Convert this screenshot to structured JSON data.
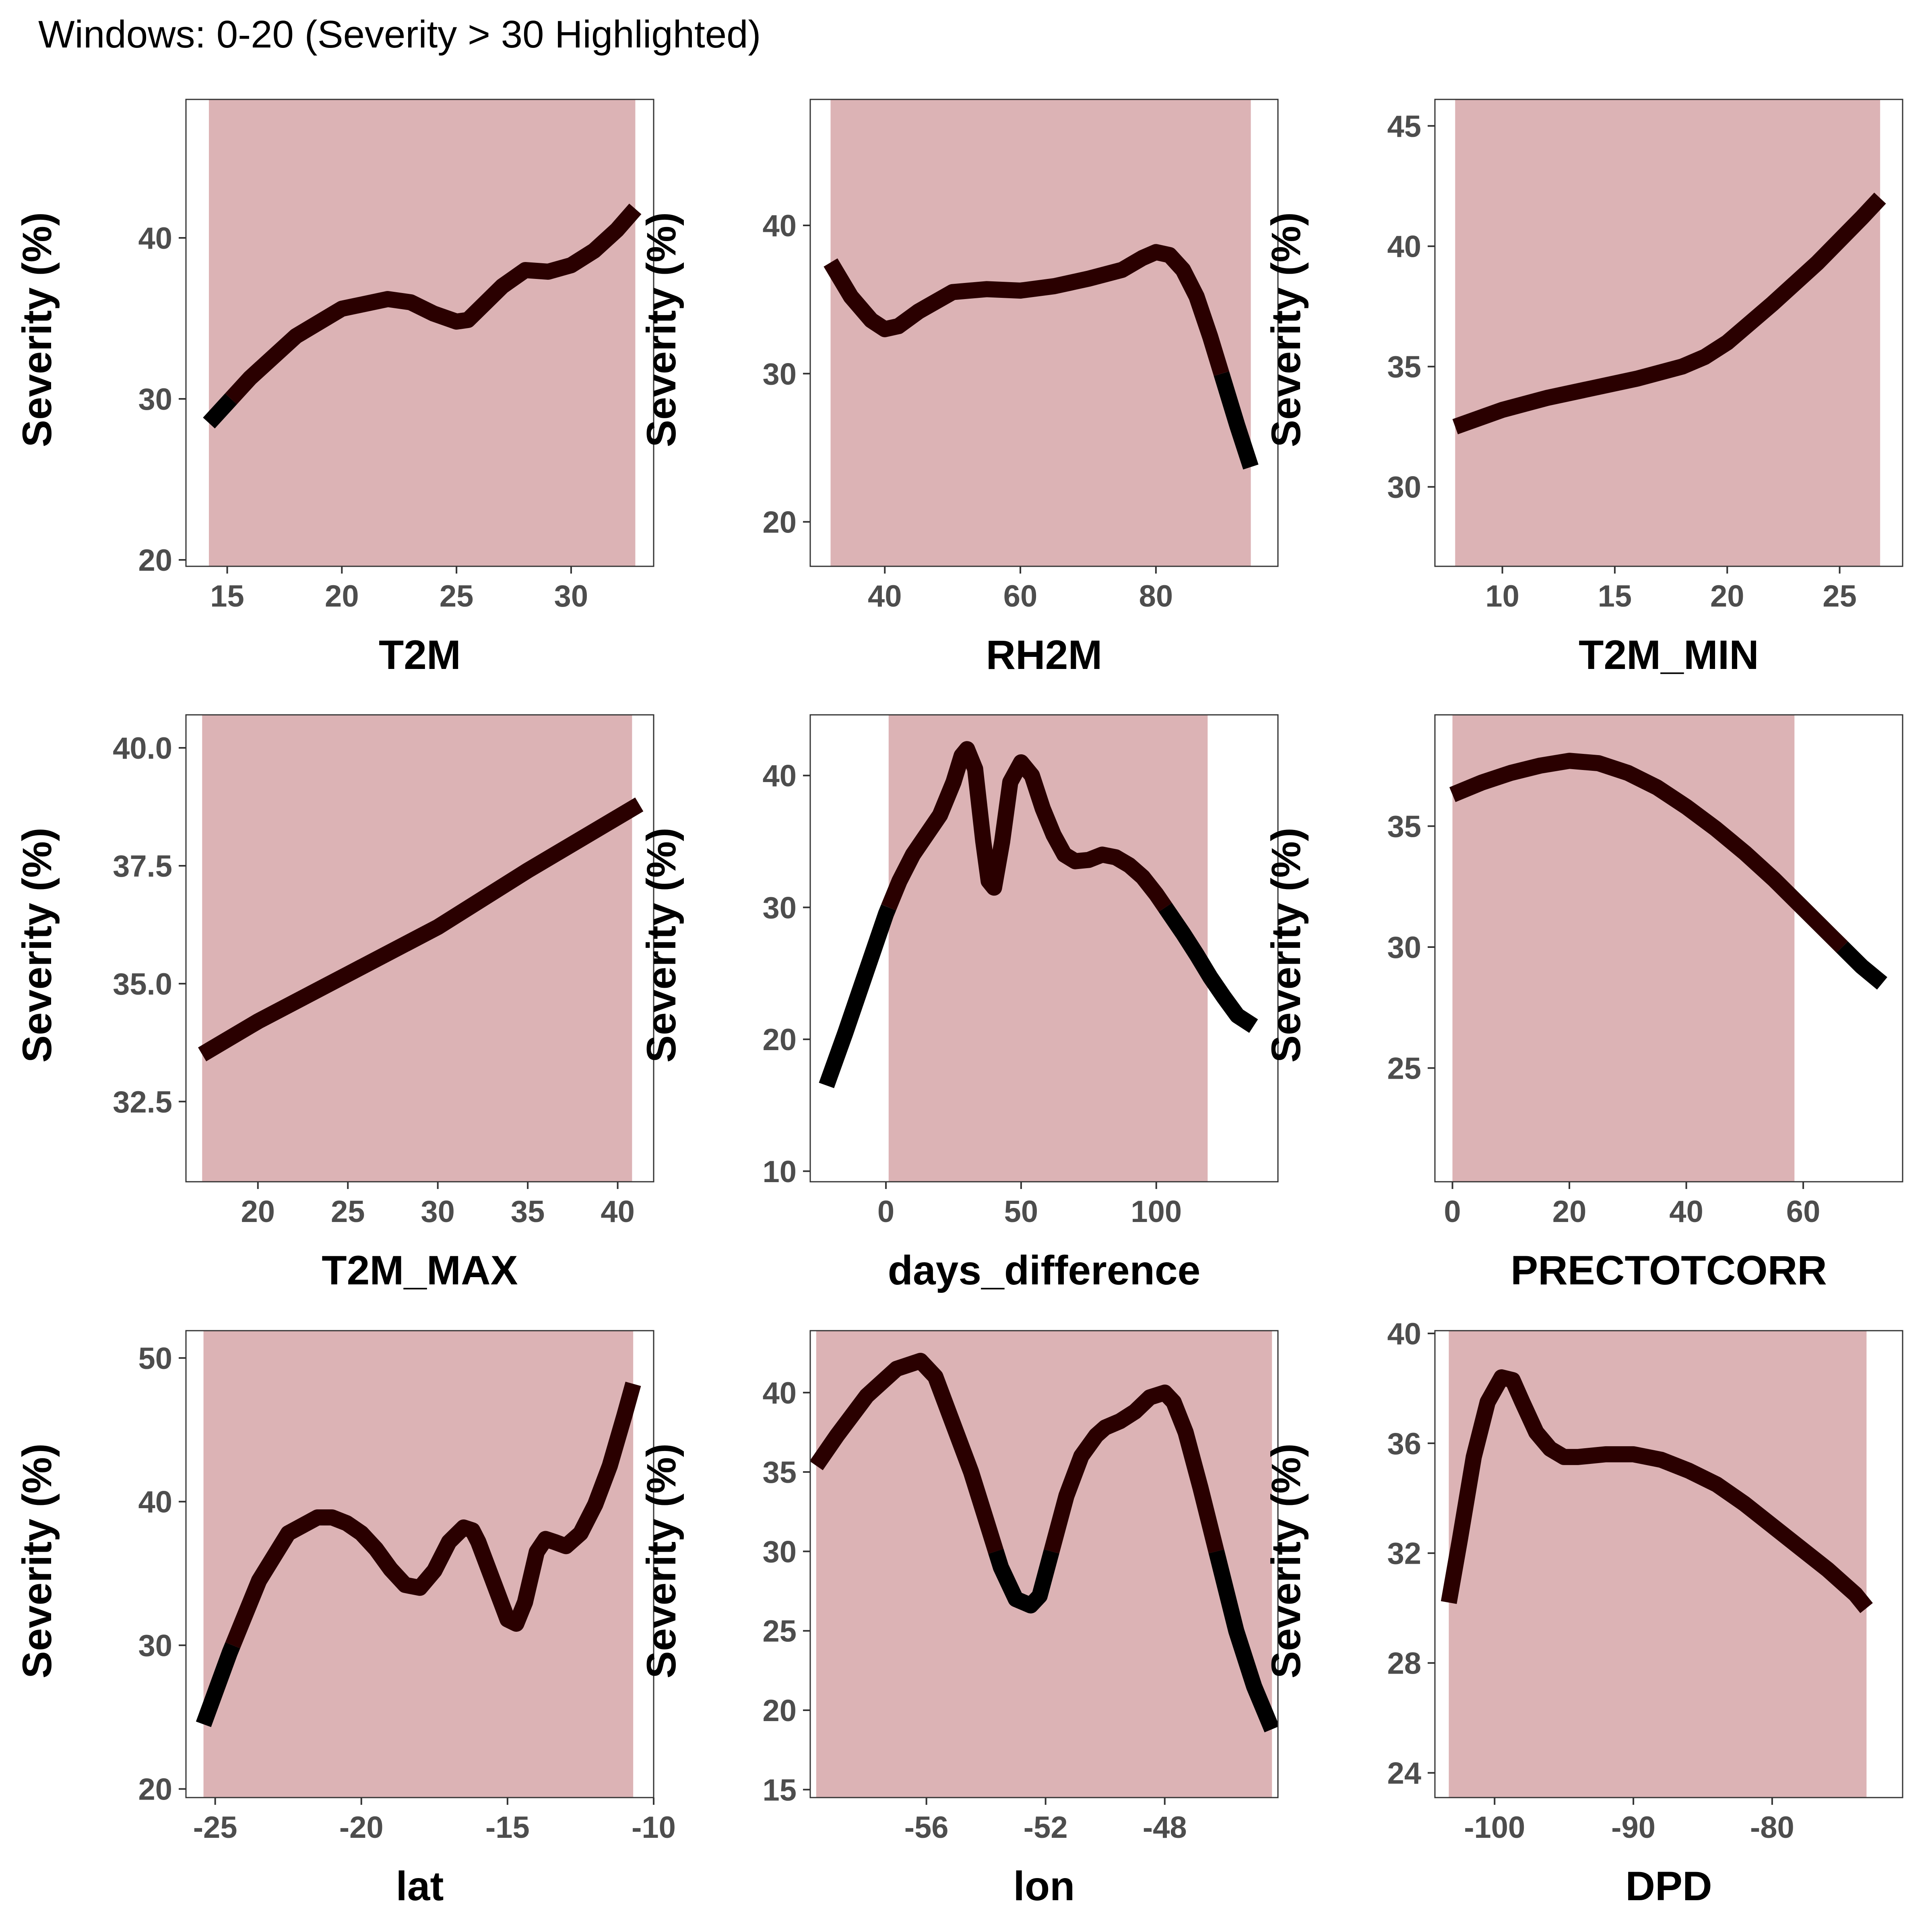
{
  "title": "Windows: 0-20 (Severity > 30 Highlighted)",
  "colors": {
    "highlight": "#dcb3b5",
    "line_above": "#2a0000",
    "line_below": "#000000",
    "axis": "#333333",
    "tick_text": "#4d4d4d"
  },
  "chart_data": [
    {
      "type": "line",
      "xlabel": "T2M",
      "ylabel": "Severity (%)",
      "xlim": [
        13.2,
        33.6
      ],
      "ylim": [
        19.6,
        48.6
      ],
      "xticks": [
        {
          "v": 15,
          "label": "15"
        },
        {
          "v": 20,
          "label": "20"
        },
        {
          "v": 25,
          "label": "25"
        },
        {
          "v": 30,
          "label": "30"
        }
      ],
      "yticks": [
        {
          "v": 20,
          "label": "20"
        },
        {
          "v": 30,
          "label": "30"
        },
        {
          "v": 40,
          "label": "40"
        }
      ],
      "highlight": [
        [
          14.2,
          32.8
        ]
      ],
      "x": [
        14.2,
        16,
        18,
        20,
        22,
        23,
        24,
        25,
        25.5,
        26,
        27,
        28,
        29,
        30,
        31,
        32,
        32.8
      ],
      "y": [
        28.5,
        31.3,
        33.9,
        35.6,
        36.2,
        36.0,
        35.3,
        34.8,
        34.9,
        35.6,
        37.0,
        38.0,
        37.9,
        38.3,
        39.2,
        40.5,
        41.8
      ]
    },
    {
      "type": "line",
      "xlabel": "RH2M",
      "ylabel": "Severity (%)",
      "xlim": [
        29,
        98
      ],
      "ylim": [
        17,
        48.5
      ],
      "xticks": [
        {
          "v": 40,
          "label": "40"
        },
        {
          "v": 60,
          "label": "60"
        },
        {
          "v": 80,
          "label": "80"
        }
      ],
      "yticks": [
        {
          "v": 20,
          "label": "20"
        },
        {
          "v": 30,
          "label": "30"
        },
        {
          "v": 40,
          "label": "40"
        }
      ],
      "highlight": [
        [
          32,
          94
        ]
      ],
      "x": [
        32,
        35,
        38,
        40,
        42,
        45,
        50,
        55,
        60,
        65,
        70,
        75,
        78,
        80,
        82,
        84,
        86,
        88,
        90,
        92,
        94
      ],
      "y": [
        37.5,
        35.2,
        33.6,
        33.0,
        33.2,
        34.2,
        35.5,
        35.7,
        35.6,
        35.9,
        36.4,
        37.0,
        37.8,
        38.2,
        38.0,
        37.0,
        35.2,
        32.5,
        29.5,
        26.5,
        23.7
      ]
    },
    {
      "type": "line",
      "xlabel": "T2M_MIN",
      "ylabel": "Severity (%)",
      "xlim": [
        7,
        27.8
      ],
      "ylim": [
        26.7,
        46.1
      ],
      "xticks": [
        {
          "v": 10,
          "label": "10"
        },
        {
          "v": 15,
          "label": "15"
        },
        {
          "v": 20,
          "label": "20"
        },
        {
          "v": 25,
          "label": "25"
        }
      ],
      "yticks": [
        {
          "v": 30,
          "label": "30"
        },
        {
          "v": 35,
          "label": "35"
        },
        {
          "v": 40,
          "label": "40"
        },
        {
          "v": 45,
          "label": "45"
        }
      ],
      "highlight": [
        [
          7.9,
          26.8
        ]
      ],
      "x": [
        7.9,
        10,
        12,
        14,
        16,
        18,
        19,
        20,
        22,
        24,
        26,
        26.8
      ],
      "y": [
        32.5,
        33.2,
        33.7,
        34.1,
        34.5,
        35.0,
        35.4,
        36.0,
        37.6,
        39.3,
        41.2,
        42.0
      ]
    },
    {
      "type": "line",
      "xlabel": "T2M_MAX",
      "ylabel": "Severity (%)",
      "xlim": [
        16,
        42
      ],
      "ylim": [
        30.8,
        40.7
      ],
      "xticks": [
        {
          "v": 20,
          "label": "20"
        },
        {
          "v": 25,
          "label": "25"
        },
        {
          "v": 30,
          "label": "30"
        },
        {
          "v": 35,
          "label": "35"
        },
        {
          "v": 40,
          "label": "40"
        }
      ],
      "yticks": [
        {
          "v": 32.5,
          "label": "32.5"
        },
        {
          "v": 35,
          "label": "35.0"
        },
        {
          "v": 37.5,
          "label": "37.5"
        },
        {
          "v": 40,
          "label": "40.0"
        }
      ],
      "highlight": [
        [
          16.9,
          40.8
        ]
      ],
      "x": [
        16.9,
        20,
        25,
        30,
        35,
        41.2
      ],
      "y": [
        33.5,
        34.2,
        35.2,
        36.2,
        37.4,
        38.8
      ]
    },
    {
      "type": "line",
      "xlabel": "days_difference",
      "ylabel": "Severity (%)",
      "xlim": [
        -28,
        145
      ],
      "ylim": [
        9.2,
        44.6
      ],
      "xticks": [
        {
          "v": 0,
          "label": "0"
        },
        {
          "v": 50,
          "label": "50"
        },
        {
          "v": 100,
          "label": "100"
        }
      ],
      "yticks": [
        {
          "v": 10,
          "label": "10"
        },
        {
          "v": 20,
          "label": "20"
        },
        {
          "v": 30,
          "label": "30"
        },
        {
          "v": 40,
          "label": "40"
        }
      ],
      "highlight": [
        [
          1,
          119
        ]
      ],
      "x": [
        -22,
        -15,
        -10,
        -5,
        0,
        5,
        10,
        15,
        20,
        25,
        28,
        30,
        33,
        36,
        38,
        40,
        43,
        46,
        50,
        54,
        58,
        62,
        66,
        70,
        75,
        80,
        85,
        90,
        95,
        100,
        105,
        110,
        115,
        120,
        125,
        130,
        136
      ],
      "y": [
        16.5,
        20.5,
        23.5,
        26.5,
        29.5,
        32.0,
        34.0,
        35.5,
        37.0,
        39.5,
        41.5,
        42.0,
        40.5,
        35.0,
        32.0,
        31.5,
        35.0,
        39.5,
        41.0,
        40.0,
        37.5,
        35.5,
        34.0,
        33.5,
        33.6,
        34.0,
        33.8,
        33.2,
        32.3,
        31.0,
        29.5,
        28.0,
        26.4,
        24.7,
        23.2,
        21.8,
        21.0
      ]
    },
    {
      "type": "line",
      "xlabel": "PRECTOTCORR",
      "ylabel": "Severity (%)",
      "xlim": [
        -3,
        77
      ],
      "ylim": [
        20.3,
        39.6
      ],
      "xticks": [
        {
          "v": 0,
          "label": "0"
        },
        {
          "v": 20,
          "label": "20"
        },
        {
          "v": 40,
          "label": "40"
        },
        {
          "v": 60,
          "label": "60"
        }
      ],
      "yticks": [
        {
          "v": 25,
          "label": "25"
        },
        {
          "v": 30,
          "label": "30"
        },
        {
          "v": 35,
          "label": "35"
        }
      ],
      "highlight": [
        [
          0,
          58.5
        ]
      ],
      "x": [
        0,
        5,
        10,
        15,
        20,
        25,
        30,
        35,
        40,
        45,
        50,
        55,
        60,
        65,
        70,
        73.5
      ],
      "y": [
        36.3,
        36.8,
        37.2,
        37.5,
        37.7,
        37.6,
        37.2,
        36.6,
        35.8,
        34.9,
        33.9,
        32.8,
        31.6,
        30.4,
        29.2,
        28.5
      ]
    },
    {
      "type": "line",
      "xlabel": "lat",
      "ylabel": "Severity (%)",
      "xlim": [
        -26,
        -10
      ],
      "ylim": [
        19.4,
        51.9
      ],
      "xticks": [
        {
          "v": -25,
          "label": "-25"
        },
        {
          "v": -20,
          "label": "-20"
        },
        {
          "v": -15,
          "label": "-15"
        },
        {
          "v": -10,
          "label": "-10"
        }
      ],
      "yticks": [
        {
          "v": 20,
          "label": "20"
        },
        {
          "v": 30,
          "label": "30"
        },
        {
          "v": 40,
          "label": "40"
        },
        {
          "v": 50,
          "label": "50"
        }
      ],
      "highlight": [
        [
          -25.4,
          -10.7
        ]
      ],
      "x": [
        -25.4,
        -24.5,
        -23.5,
        -22.5,
        -21.5,
        -21,
        -20.5,
        -20,
        -19.5,
        -19,
        -18.5,
        -18,
        -17.5,
        -17,
        -16.5,
        -16.2,
        -16,
        -15.5,
        -15,
        -14.7,
        -14.4,
        -14,
        -13.7,
        -13.4,
        -13,
        -12.5,
        -12,
        -11.5,
        -11,
        -10.7
      ],
      "y": [
        24.5,
        29.5,
        34.5,
        37.8,
        38.9,
        38.9,
        38.5,
        37.8,
        36.7,
        35.3,
        34.2,
        34.0,
        35.2,
        37.2,
        38.2,
        38.0,
        37.2,
        34.5,
        31.8,
        31.5,
        33.0,
        36.5,
        37.4,
        37.2,
        36.9,
        37.8,
        39.8,
        42.5,
        46.0,
        48.2
      ]
    },
    {
      "type": "line",
      "xlabel": "lon",
      "ylabel": "Severity (%)",
      "xlim": [
        -59.9,
        -44.2
      ],
      "ylim": [
        14.5,
        43.9
      ],
      "xticks": [
        {
          "v": -56,
          "label": "-56"
        },
        {
          "v": -52,
          "label": "-52"
        },
        {
          "v": -48,
          "label": "-48"
        }
      ],
      "yticks": [
        {
          "v": 15,
          "label": "15"
        },
        {
          "v": 20,
          "label": "20"
        },
        {
          "v": 25,
          "label": "25"
        },
        {
          "v": 30,
          "label": "30"
        },
        {
          "v": 35,
          "label": "35"
        },
        {
          "v": 40,
          "label": "40"
        }
      ],
      "highlight": [
        [
          -59.7,
          -44.4
        ]
      ],
      "x": [
        -59.7,
        -59,
        -58,
        -57,
        -56.2,
        -55.7,
        -55.2,
        -54.5,
        -54,
        -53.5,
        -53,
        -52.5,
        -52.2,
        -51.8,
        -51.3,
        -50.8,
        -50.3,
        -50,
        -49.5,
        -49,
        -48.5,
        -48,
        -47.7,
        -47.3,
        -46.8,
        -46.2,
        -45.6,
        -45,
        -44.4
      ],
      "y": [
        35.4,
        37.3,
        39.8,
        41.5,
        42.0,
        41.0,
        38.5,
        35.0,
        32.0,
        29.0,
        27.0,
        26.6,
        27.2,
        30.0,
        33.5,
        36.0,
        37.3,
        37.8,
        38.2,
        38.8,
        39.7,
        40.0,
        39.4,
        37.5,
        34.0,
        29.5,
        25.0,
        21.5,
        18.8
      ]
    },
    {
      "type": "line",
      "xlabel": "DPD",
      "ylabel": "Severity (%)",
      "xlim": [
        -104.3,
        -70.6
      ],
      "ylim": [
        23.1,
        40.1
      ],
      "xticks": [
        {
          "v": -100,
          "label": "-100"
        },
        {
          "v": -90,
          "label": "-90"
        },
        {
          "v": -80,
          "label": "-80"
        }
      ],
      "yticks": [
        {
          "v": 24,
          "label": "24"
        },
        {
          "v": 28,
          "label": "28"
        },
        {
          "v": 32,
          "label": "32"
        },
        {
          "v": 36,
          "label": "36"
        },
        {
          "v": 40,
          "label": "40"
        }
      ],
      "highlight": [
        [
          -103.3,
          -73.2
        ]
      ],
      "x": [
        -103.3,
        -102.5,
        -101.5,
        -100.5,
        -99.5,
        -98.7,
        -98,
        -97,
        -96,
        -95,
        -94,
        -92,
        -90,
        -88,
        -86,
        -84,
        -82,
        -80,
        -78,
        -76,
        -74,
        -73.2
      ],
      "y": [
        30.2,
        32.5,
        35.5,
        37.5,
        38.4,
        38.3,
        37.5,
        36.4,
        35.8,
        35.5,
        35.5,
        35.6,
        35.6,
        35.4,
        35.0,
        34.5,
        33.8,
        33.0,
        32.2,
        31.4,
        30.5,
        30.0
      ]
    }
  ]
}
